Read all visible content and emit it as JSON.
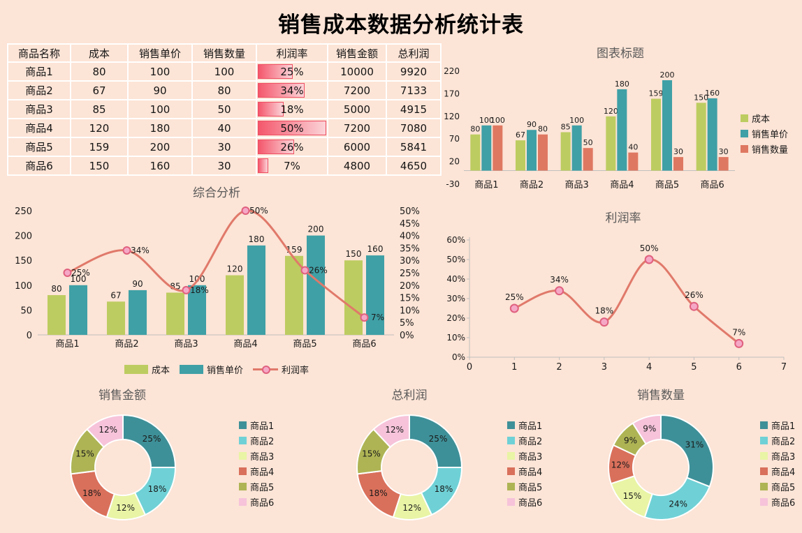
{
  "page": {
    "title": "销售成本数据分析统计表",
    "background": "#FCE4D6"
  },
  "palette": {
    "cost_green": "#BDCC60",
    "price_teal": "#3FA0A6",
    "qty_salmon": "#DF7861",
    "line_salmon": "#E0796A",
    "marker_fill": "#F5A8C6",
    "marker_stroke": "#E0607E",
    "axis_gray": "#BFBFBF",
    "pie_colors": [
      "#3E9098",
      "#6FD1D6",
      "#E9F4A5",
      "#D9705B",
      "#AEB454",
      "#F6C3DA"
    ]
  },
  "table": {
    "headers": [
      "商品名称",
      "成本",
      "销售单价",
      "销售数量",
      "利润率",
      "销售金额",
      "总利润"
    ],
    "rows": [
      {
        "name": "商品1",
        "cost": "80",
        "price": "100",
        "qty": "100",
        "margin": "25%",
        "margin_pct": 25,
        "amount": "10000",
        "profit": "9920"
      },
      {
        "name": "商品2",
        "cost": "67",
        "price": "90",
        "qty": "80",
        "margin": "34%",
        "margin_pct": 34,
        "amount": "7200",
        "profit": "7133"
      },
      {
        "name": "商品3",
        "cost": "85",
        "price": "100",
        "qty": "50",
        "margin": "18%",
        "margin_pct": 18,
        "amount": "5000",
        "profit": "4915"
      },
      {
        "name": "商品4",
        "cost": "120",
        "price": "180",
        "qty": "40",
        "margin": "50%",
        "margin_pct": 50,
        "amount": "7200",
        "profit": "7080"
      },
      {
        "name": "商品5",
        "cost": "159",
        "price": "200",
        "qty": "30",
        "margin": "26%",
        "margin_pct": 26,
        "amount": "6000",
        "profit": "5841"
      },
      {
        "name": "商品6",
        "cost": "150",
        "price": "160",
        "qty": "30",
        "margin": "7%",
        "margin_pct": 7,
        "amount": "4800",
        "profit": "4650"
      }
    ],
    "databar": {
      "max": 50,
      "gradient_start": "#F4576C",
      "gradient_end": "#FBD4D8",
      "border": "#EE4D63"
    }
  },
  "chart_data": [
    {
      "id": "bar-chart",
      "type": "bar",
      "title": "图表标题",
      "categories": [
        "商品1",
        "商品2",
        "商品3",
        "商品4",
        "商品5",
        "商品6"
      ],
      "series": [
        {
          "name": "成本",
          "color": "#BDCC60",
          "values": [
            80,
            67,
            85,
            120,
            159,
            150
          ]
        },
        {
          "name": "销售单价",
          "color": "#3FA0A6",
          "values": [
            100,
            90,
            100,
            180,
            200,
            160
          ]
        },
        {
          "name": "销售数量",
          "color": "#DF7861",
          "values": [
            100,
            80,
            50,
            40,
            30,
            30
          ]
        }
      ],
      "ylim": [
        -30,
        220
      ],
      "ytick_step": 50,
      "grid": false,
      "legend_position": "right",
      "data_labels": true
    },
    {
      "id": "combo-chart",
      "type": "bar+line",
      "title": "综合分析",
      "categories": [
        "商品1",
        "商品2",
        "商品3",
        "商品4",
        "商品5",
        "商品6"
      ],
      "series": [
        {
          "name": "成本",
          "color": "#BDCC60",
          "values": [
            80,
            67,
            85,
            120,
            159,
            150
          ]
        },
        {
          "name": "销售单价",
          "color": "#3FA0A6",
          "values": [
            100,
            90,
            100,
            180,
            200,
            160
          ]
        }
      ],
      "line_series": {
        "name": "利润率",
        "color": "#E0796A",
        "marker_fill": "#F5A8C6",
        "marker_stroke": "#E0607E",
        "values": [
          25,
          34,
          18,
          50,
          26,
          7
        ],
        "labels": [
          "25%",
          "34%",
          "18%",
          "50%",
          "26%",
          "7%"
        ]
      },
      "ylim": [
        0,
        250
      ],
      "ytick_step": 50,
      "y2lim": [
        0,
        50
      ],
      "y2tick_step": 5,
      "y2suffix": "%",
      "grid": false,
      "legend_position": "bottom",
      "data_labels": true
    },
    {
      "id": "line-chart",
      "type": "line",
      "title": "利润率",
      "x": [
        1,
        2,
        3,
        4,
        5,
        6
      ],
      "values": [
        25,
        34,
        18,
        50,
        26,
        7
      ],
      "labels": [
        "25%",
        "34%",
        "18%",
        "50%",
        "26%",
        "7%"
      ],
      "xlim": [
        0,
        7
      ],
      "xtick_step": 1,
      "ylim": [
        0,
        60
      ],
      "ytick_step": 10,
      "ysuffix": "%",
      "color": "#E0796A",
      "marker_fill": "#F5A8C6",
      "marker_stroke": "#E0607E",
      "grid": false,
      "legend_position": "none"
    },
    {
      "id": "donut-sales-amount",
      "type": "pie",
      "title": "销售金额",
      "labels": [
        "商品1",
        "商品2",
        "商品3",
        "商品4",
        "商品5",
        "商品6"
      ],
      "values": [
        25,
        18,
        12,
        18,
        15,
        12
      ],
      "display": [
        "25%",
        "18%",
        "12%",
        "18%",
        "15%",
        "12%"
      ],
      "colors": [
        "#3E9098",
        "#6FD1D6",
        "#E9F4A5",
        "#D9705B",
        "#AEB454",
        "#F6C3DA"
      ],
      "legend_position": "right"
    },
    {
      "id": "donut-total-profit",
      "type": "pie",
      "title": "总利润",
      "labels": [
        "商品1",
        "商品2",
        "商品3",
        "商品4",
        "商品5",
        "商品6"
      ],
      "values": [
        25,
        18,
        12,
        18,
        15,
        12
      ],
      "display": [
        "25%",
        "18%",
        "12%",
        "18%",
        "15%",
        "12%"
      ],
      "colors": [
        "#3E9098",
        "#6FD1D6",
        "#E9F4A5",
        "#D9705B",
        "#AEB454",
        "#F6C3DA"
      ],
      "legend_position": "right"
    },
    {
      "id": "donut-sales-qty",
      "type": "pie",
      "title": "销售数量",
      "labels": [
        "商品1",
        "商品2",
        "商品3",
        "商品4",
        "商品5",
        "商品6"
      ],
      "values": [
        31,
        24,
        15,
        12,
        9,
        9
      ],
      "display": [
        "31%",
        "24%",
        "15%",
        "12%",
        "9%",
        "9%"
      ],
      "colors": [
        "#3E9098",
        "#6FD1D6",
        "#E9F4A5",
        "#D9705B",
        "#AEB454",
        "#F6C3DA"
      ],
      "legend_position": "right"
    }
  ]
}
